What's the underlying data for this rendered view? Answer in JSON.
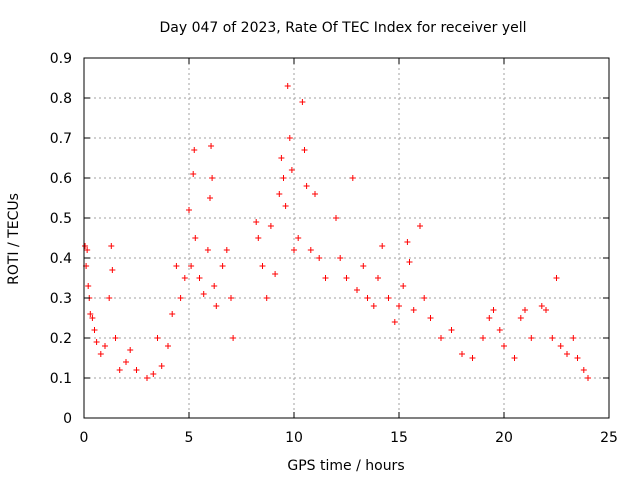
{
  "chart_data": {
    "type": "scatter",
    "title": "Day 047 of 2023, Rate Of TEC Index for receiver yell",
    "xlabel": "GPS time / hours",
    "ylabel": "ROTI / TECUs",
    "xlim": [
      0,
      25
    ],
    "ylim": [
      0,
      0.9
    ],
    "xticks": [
      0,
      5,
      10,
      15,
      20,
      25
    ],
    "yticks": [
      0,
      0.1,
      0.2,
      0.3,
      0.4,
      0.5,
      0.6,
      0.7,
      0.8,
      0.9
    ],
    "xtick_labels": [
      "0",
      "5",
      "10",
      "15",
      "20",
      "25"
    ],
    "ytick_labels": [
      "0",
      "0.1",
      "0.2",
      "0.3",
      "0.4",
      "0.5",
      "0.6",
      "0.7",
      "0.8",
      "0.9"
    ],
    "grid": true,
    "marker": "+",
    "series": [
      {
        "name": "ROTI",
        "color": "#ff0000",
        "points": [
          [
            0.05,
            0.43
          ],
          [
            0.1,
            0.38
          ],
          [
            0.15,
            0.42
          ],
          [
            0.2,
            0.33
          ],
          [
            0.25,
            0.3
          ],
          [
            0.3,
            0.26
          ],
          [
            0.4,
            0.25
          ],
          [
            0.5,
            0.22
          ],
          [
            0.6,
            0.19
          ],
          [
            0.8,
            0.16
          ],
          [
            1.0,
            0.18
          ],
          [
            1.2,
            0.3
          ],
          [
            1.3,
            0.43
          ],
          [
            1.35,
            0.37
          ],
          [
            1.5,
            0.2
          ],
          [
            1.7,
            0.12
          ],
          [
            2.0,
            0.14
          ],
          [
            2.2,
            0.17
          ],
          [
            2.5,
            0.12
          ],
          [
            3.0,
            0.1
          ],
          [
            3.3,
            0.11
          ],
          [
            3.5,
            0.2
          ],
          [
            3.7,
            0.13
          ],
          [
            4.0,
            0.18
          ],
          [
            4.2,
            0.26
          ],
          [
            4.4,
            0.38
          ],
          [
            4.6,
            0.3
          ],
          [
            4.8,
            0.35
          ],
          [
            5.0,
            0.52
          ],
          [
            5.1,
            0.38
          ],
          [
            5.2,
            0.61
          ],
          [
            5.25,
            0.67
          ],
          [
            5.3,
            0.45
          ],
          [
            5.5,
            0.35
          ],
          [
            5.7,
            0.31
          ],
          [
            5.9,
            0.42
          ],
          [
            6.0,
            0.55
          ],
          [
            6.05,
            0.68
          ],
          [
            6.1,
            0.6
          ],
          [
            6.2,
            0.33
          ],
          [
            6.3,
            0.28
          ],
          [
            6.6,
            0.38
          ],
          [
            6.8,
            0.42
          ],
          [
            7.0,
            0.3
          ],
          [
            7.1,
            0.2
          ],
          [
            8.2,
            0.49
          ],
          [
            8.3,
            0.45
          ],
          [
            8.5,
            0.38
          ],
          [
            8.7,
            0.3
          ],
          [
            8.9,
            0.48
          ],
          [
            9.1,
            0.36
          ],
          [
            9.3,
            0.56
          ],
          [
            9.4,
            0.65
          ],
          [
            9.5,
            0.6
          ],
          [
            9.6,
            0.53
          ],
          [
            9.7,
            0.83
          ],
          [
            9.8,
            0.7
          ],
          [
            9.9,
            0.62
          ],
          [
            10.0,
            0.42
          ],
          [
            10.2,
            0.45
          ],
          [
            10.4,
            0.79
          ],
          [
            10.5,
            0.67
          ],
          [
            10.6,
            0.58
          ],
          [
            10.8,
            0.42
          ],
          [
            11.0,
            0.56
          ],
          [
            11.2,
            0.4
          ],
          [
            11.5,
            0.35
          ],
          [
            12.0,
            0.5
          ],
          [
            12.2,
            0.4
          ],
          [
            12.5,
            0.35
          ],
          [
            12.8,
            0.6
          ],
          [
            13.0,
            0.32
          ],
          [
            13.3,
            0.38
          ],
          [
            13.5,
            0.3
          ],
          [
            13.8,
            0.28
          ],
          [
            14.0,
            0.35
          ],
          [
            14.2,
            0.43
          ],
          [
            14.5,
            0.3
          ],
          [
            14.8,
            0.24
          ],
          [
            15.0,
            0.28
          ],
          [
            15.2,
            0.33
          ],
          [
            15.4,
            0.44
          ],
          [
            15.5,
            0.39
          ],
          [
            15.7,
            0.27
          ],
          [
            16.0,
            0.48
          ],
          [
            16.2,
            0.3
          ],
          [
            16.5,
            0.25
          ],
          [
            17.0,
            0.2
          ],
          [
            17.5,
            0.22
          ],
          [
            18.0,
            0.16
          ],
          [
            18.5,
            0.15
          ],
          [
            19.0,
            0.2
          ],
          [
            19.3,
            0.25
          ],
          [
            19.5,
            0.27
          ],
          [
            19.8,
            0.22
          ],
          [
            20.0,
            0.18
          ],
          [
            20.5,
            0.15
          ],
          [
            20.8,
            0.25
          ],
          [
            21.0,
            0.27
          ],
          [
            21.3,
            0.2
          ],
          [
            21.8,
            0.28
          ],
          [
            22.0,
            0.27
          ],
          [
            22.3,
            0.2
          ],
          [
            22.5,
            0.35
          ],
          [
            22.7,
            0.18
          ],
          [
            23.0,
            0.16
          ],
          [
            23.3,
            0.2
          ],
          [
            23.5,
            0.15
          ],
          [
            23.8,
            0.12
          ],
          [
            24.0,
            0.1
          ]
        ]
      }
    ]
  }
}
